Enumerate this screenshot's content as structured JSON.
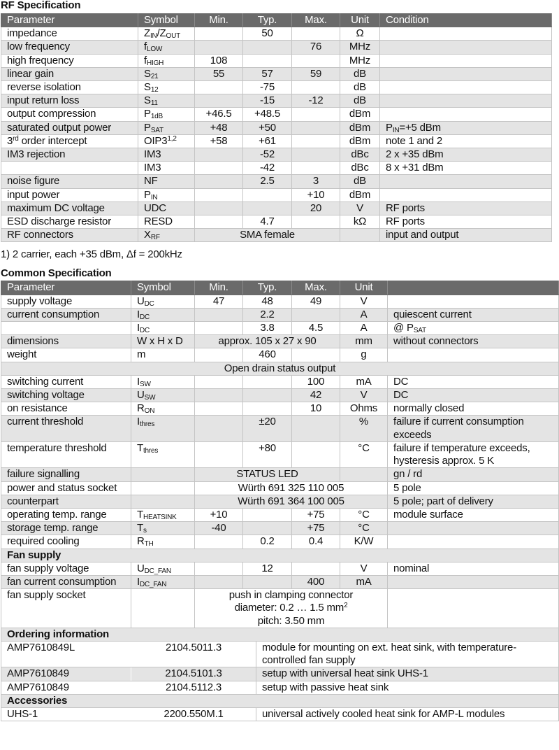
{
  "rf": {
    "title": "RF Specification",
    "headers": [
      "Parameter",
      "Symbol",
      "Min.",
      "Typ.",
      "Max.",
      "Unit",
      "Condition"
    ],
    "rows": [
      {
        "param": "impedance",
        "symbol": [
          {
            "t": "Z"
          },
          {
            "sub": "IN"
          },
          {
            "t": "/Z"
          },
          {
            "sub": "OUT"
          }
        ],
        "min": "",
        "typ": "50",
        "max": "",
        "unit": "Ω",
        "cond": ""
      },
      {
        "param": "low frequency",
        "symbol": [
          {
            "t": "f"
          },
          {
            "sub": "LOW"
          }
        ],
        "min": "",
        "typ": "",
        "max": "76",
        "unit": "MHz",
        "cond": ""
      },
      {
        "param": "high frequency",
        "symbol": [
          {
            "t": "f"
          },
          {
            "sub": "HIGH"
          }
        ],
        "min": "108",
        "typ": "",
        "max": "",
        "unit": "MHz",
        "cond": ""
      },
      {
        "param": "linear gain",
        "symbol": [
          {
            "t": "S"
          },
          {
            "sub": "21"
          }
        ],
        "min": "55",
        "typ": "57",
        "max": "59",
        "unit": "dB",
        "cond": ""
      },
      {
        "param": "reverse isolation",
        "symbol": [
          {
            "t": "S"
          },
          {
            "sub": "12"
          }
        ],
        "min": "",
        "typ": "-75",
        "max": "",
        "unit": "dB",
        "cond": ""
      },
      {
        "param": "input return loss",
        "symbol": [
          {
            "t": "S"
          },
          {
            "sub": "11"
          }
        ],
        "min": "",
        "typ": "-15",
        "max": "-12",
        "unit": "dB",
        "cond": ""
      },
      {
        "param": "output compression",
        "symbol": [
          {
            "t": "P"
          },
          {
            "sub": "1dB"
          }
        ],
        "min": "+46.5",
        "typ": "+48.5",
        "max": "",
        "unit": "dBm",
        "cond": ""
      },
      {
        "param": "saturated output power",
        "symbol": [
          {
            "t": "P"
          },
          {
            "sub": "SAT"
          }
        ],
        "min": "+48",
        "typ": "+50",
        "max": "",
        "unit": "dBm",
        "cond": [
          {
            "t": "P"
          },
          {
            "sub": "IN"
          },
          {
            "t": "=+5 dBm"
          }
        ]
      },
      {
        "param": [
          {
            "t": "3"
          },
          {
            "sup": "rd"
          },
          {
            "t": " order intercept"
          }
        ],
        "symbol": [
          {
            "t": "OIP3"
          },
          {
            "sup": "1,2"
          }
        ],
        "min": "+58",
        "typ": "+61",
        "max": "",
        "unit": "dBm",
        "cond": "note 1 and 2"
      },
      {
        "param": "IM3 rejection",
        "symbol": "IM3",
        "min": "",
        "typ": "-52",
        "max": "",
        "unit": "dBc",
        "cond": "2 x +35 dBm"
      },
      {
        "param": "",
        "symbol": "IM3",
        "min": "",
        "typ": "-42",
        "max": "",
        "unit": "dBc",
        "cond": "8 x +31 dBm"
      },
      {
        "param": "noise figure",
        "symbol": "NF",
        "min": "",
        "typ": "2.5",
        "max": "3",
        "unit": "dB",
        "cond": ""
      },
      {
        "param": "input power",
        "symbol": [
          {
            "t": "P"
          },
          {
            "sub": "IN"
          }
        ],
        "min": "",
        "typ": "",
        "max": "+10",
        "unit": "dBm",
        "cond": ""
      },
      {
        "param": "maximum DC voltage",
        "symbol": "UDC",
        "min": "",
        "typ": "",
        "max": "20",
        "unit": "V",
        "cond": "RF ports"
      },
      {
        "param": "ESD discharge resistor",
        "symbol": "RESD",
        "min": "",
        "typ": "4.7",
        "max": "",
        "unit": "kΩ",
        "cond": "RF ports"
      },
      {
        "param": "RF connectors",
        "symbol": [
          {
            "t": "X"
          },
          {
            "sub": "RF"
          }
        ],
        "merged": "SMA female",
        "span": 3,
        "unit": "",
        "cond": "input and output"
      }
    ],
    "footnote": "1) 2 carrier, each +35 dBm, Δf = 200kHz"
  },
  "common": {
    "title": "Common Specification",
    "headers": [
      "Parameter",
      "Symbol",
      "Min.",
      "Typ.",
      "Max.",
      "Unit",
      ""
    ],
    "rows": [
      {
        "param": "supply voltage",
        "symbol": [
          {
            "t": "U"
          },
          {
            "sub": "DC"
          }
        ],
        "min": "47",
        "typ": "48",
        "max": "49",
        "unit": "V",
        "cond": ""
      },
      {
        "param": "current consumption",
        "symbol": [
          {
            "t": "I"
          },
          {
            "sub": "DC"
          }
        ],
        "min": "",
        "typ": "2.2",
        "max": "",
        "unit": "A",
        "cond": "quiescent current"
      },
      {
        "param": "",
        "symbol": [
          {
            "t": "I"
          },
          {
            "sub": "DC"
          }
        ],
        "min": "",
        "typ": "3.8",
        "max": "4.5",
        "unit": "A",
        "cond": [
          {
            "t": "@ P"
          },
          {
            "sub": "SAT"
          }
        ]
      },
      {
        "param": "dimensions",
        "symbol": "W x H x D",
        "merged": "approx. 105 x 27 x 90",
        "span": 3,
        "unit": "mm",
        "cond": "without connectors"
      },
      {
        "param": "weight",
        "symbol": "m",
        "min": "",
        "typ": "460",
        "max": "",
        "unit": "g",
        "cond": ""
      },
      {
        "full": "Open drain status output"
      },
      {
        "param": "switching current",
        "symbol": [
          {
            "t": "I"
          },
          {
            "sub": "SW"
          }
        ],
        "min": "",
        "typ": "",
        "max": "100",
        "unit": "mA",
        "cond": "DC"
      },
      {
        "param": "switching voltage",
        "symbol": [
          {
            "t": "U"
          },
          {
            "sub": "SW"
          }
        ],
        "min": "",
        "typ": "",
        "max": "42",
        "unit": "V",
        "cond": "DC"
      },
      {
        "param": "on resistance",
        "symbol": [
          {
            "t": "R"
          },
          {
            "sub": "ON"
          }
        ],
        "min": "",
        "typ": "",
        "max": "10",
        "unit": "Ohms",
        "cond": "normally closed"
      },
      {
        "param": "current threshold",
        "symbol": [
          {
            "t": "I"
          },
          {
            "sub": "thres"
          }
        ],
        "min": "",
        "typ": "±20",
        "max": "",
        "unit": "%",
        "cond": "failure if current consumption exceeds"
      },
      {
        "param": "temperature threshold",
        "symbol": [
          {
            "t": "T"
          },
          {
            "sub": "thres"
          }
        ],
        "min": "",
        "typ": "+80",
        "max": "",
        "unit": "°C",
        "cond": "failure if temperature exceeds, hysteresis approx. 5 K"
      },
      {
        "param": "failure signalling",
        "symbol": "",
        "merged": "STATUS LED",
        "span": 3,
        "unit": "",
        "cond": "gn / rd"
      },
      {
        "param": "power and status socket",
        "symbol": "",
        "merged": "Würth 691 325 110 005",
        "span": 4,
        "cond": "5 pole"
      },
      {
        "param": "counterpart",
        "symbol": "",
        "merged": "Würth 691 364 100 005",
        "span": 4,
        "cond": "5 pole; part of delivery"
      },
      {
        "param": "operating temp. range",
        "symbol": [
          {
            "t": "T"
          },
          {
            "sub": "HEATSINK"
          }
        ],
        "min": "+10",
        "typ": "",
        "max": "+75",
        "unit": "°C",
        "cond": "module surface"
      },
      {
        "param": "storage temp. range",
        "symbol": [
          {
            "t": "T"
          },
          {
            "sub": "s"
          }
        ],
        "min": "-40",
        "typ": "",
        "max": "+75",
        "unit": "°C",
        "cond": ""
      },
      {
        "param": "required cooling",
        "symbol": [
          {
            "t": "R"
          },
          {
            "sub": "TH"
          }
        ],
        "min": "",
        "typ": "0.2",
        "max": "0.4",
        "unit": "K/W",
        "cond": ""
      },
      {
        "section": "Fan supply"
      },
      {
        "param": "fan supply voltage",
        "symbol": [
          {
            "t": "U"
          },
          {
            "sub": "DC_FAN"
          }
        ],
        "min": "",
        "typ": "12",
        "max": "",
        "unit": "V",
        "cond": "nominal"
      },
      {
        "param": "fan current consumption",
        "symbol": [
          {
            "t": "I"
          },
          {
            "sub": "DC_FAN"
          }
        ],
        "min": "",
        "typ": "",
        "max": "400",
        "unit": "mA",
        "cond": ""
      },
      {
        "param": "fan supply socket",
        "symbol": "",
        "merged": [
          {
            "t": "push in clamping connector"
          },
          {
            "br": ""
          },
          {
            "t": "diameter: 0.2 … 1.5 mm"
          },
          {
            "sup": "2"
          },
          {
            "br": ""
          },
          {
            "t": "pitch: 3.50 mm"
          }
        ],
        "span": 4,
        "cond": ""
      }
    ]
  },
  "ordering": {
    "title": "Ordering information",
    "rows": [
      {
        "name": "AMP7610849L",
        "code": "2104.5011.3",
        "desc": "module for mounting on ext. heat sink, with temperature-controlled fan supply"
      },
      {
        "name": "AMP7610849",
        "code": "2104.5101.3",
        "desc": "setup with universal heat sink UHS-1"
      },
      {
        "name": "AMP7610849",
        "code": "2104.5112.3",
        "desc": "setup with passive heat sink"
      }
    ]
  },
  "accessories": {
    "title": "Accessories",
    "rows": [
      {
        "name": "UHS-1",
        "code": "2200.550M.1",
        "desc": "universal actively cooled heat sink for AMP-L modules"
      }
    ]
  }
}
